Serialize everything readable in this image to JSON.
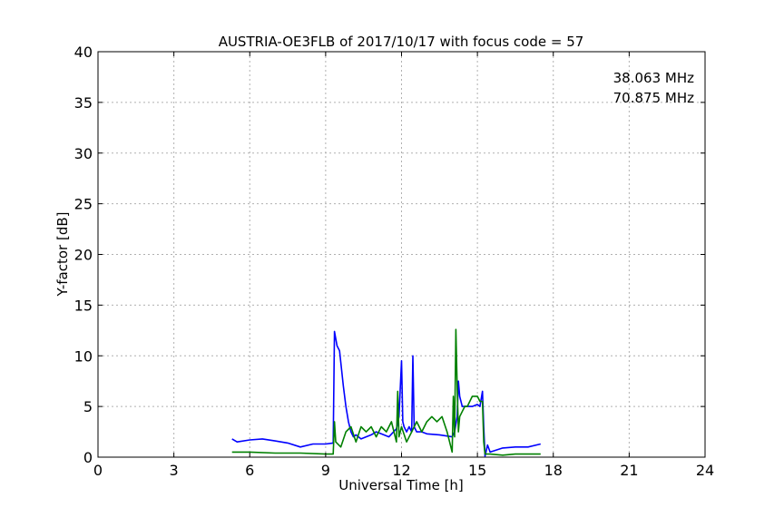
{
  "chart_data": {
    "type": "line",
    "title": "AUSTRIA-OE3FLB of 2017/10/17 with focus code = 57",
    "xlabel": "Universal Time [h]",
    "ylabel": "Y-factor [dB]",
    "xlim": [
      0,
      24
    ],
    "ylim": [
      0,
      40
    ],
    "xticks": [
      0,
      3,
      6,
      9,
      12,
      15,
      18,
      21,
      24
    ],
    "yticks": [
      0,
      5,
      10,
      15,
      20,
      25,
      30,
      35,
      40
    ],
    "grid": true,
    "legend_position": "top-right",
    "series": [
      {
        "name": "38.063 MHz",
        "color": "#0000ff",
        "x": [
          5.3,
          5.5,
          6.0,
          6.5,
          7.0,
          7.5,
          8.0,
          8.5,
          9.0,
          9.3,
          9.35,
          9.45,
          9.55,
          9.7,
          9.8,
          9.9,
          10.0,
          10.1,
          10.2,
          10.4,
          10.6,
          10.8,
          11.0,
          11.2,
          11.5,
          11.8,
          11.9,
          12.0,
          12.05,
          12.1,
          12.2,
          12.3,
          12.4,
          12.45,
          12.5,
          12.6,
          12.8,
          13.0,
          13.5,
          14.0,
          14.1,
          14.2,
          14.25,
          14.3,
          14.4,
          14.6,
          14.8,
          15.0,
          15.1,
          15.2,
          15.25,
          15.3,
          15.4,
          15.5,
          16.0,
          16.5,
          17.0,
          17.5
        ],
        "y": [
          1.8,
          1.5,
          1.7,
          1.8,
          1.6,
          1.4,
          1.0,
          1.3,
          1.3,
          1.4,
          12.4,
          11.0,
          10.5,
          7.0,
          5.0,
          3.5,
          2.5,
          2.0,
          2.2,
          1.8,
          2.0,
          2.2,
          2.5,
          2.3,
          2.0,
          2.8,
          4.0,
          9.5,
          3.5,
          3.0,
          2.5,
          3.0,
          2.5,
          10.0,
          3.0,
          2.5,
          2.5,
          2.3,
          2.2,
          2.0,
          2.5,
          4.0,
          7.5,
          6.0,
          5.0,
          5.0,
          5.0,
          5.2,
          5.0,
          6.5,
          3.0,
          0.1,
          1.2,
          0.5,
          0.9,
          1.0,
          1.0,
          1.3
        ]
      },
      {
        "name": "70.875 MHz",
        "color": "#008000",
        "x": [
          5.3,
          6.0,
          7.0,
          8.0,
          9.0,
          9.3,
          9.35,
          9.4,
          9.6,
          9.8,
          10.0,
          10.2,
          10.4,
          10.6,
          10.8,
          11.0,
          11.2,
          11.4,
          11.6,
          11.8,
          11.85,
          11.9,
          12.0,
          12.2,
          12.4,
          12.6,
          12.8,
          13.0,
          13.2,
          13.4,
          13.6,
          13.8,
          14.0,
          14.05,
          14.1,
          14.15,
          14.2,
          14.25,
          14.3,
          14.4,
          14.5,
          14.6,
          14.8,
          15.0,
          15.1,
          15.2,
          15.25,
          15.3,
          15.4,
          15.5,
          16.0,
          16.5,
          17.0,
          17.5
        ],
        "y": [
          0.5,
          0.5,
          0.4,
          0.4,
          0.3,
          0.3,
          3.5,
          1.5,
          1.0,
          2.5,
          3.0,
          1.5,
          3.0,
          2.5,
          3.0,
          2.0,
          3.0,
          2.5,
          3.5,
          1.5,
          6.5,
          2.0,
          3.0,
          1.5,
          2.5,
          3.5,
          2.5,
          3.5,
          4.0,
          3.5,
          4.0,
          2.5,
          0.5,
          6.0,
          2.0,
          12.6,
          7.0,
          2.5,
          4.0,
          4.5,
          5.0,
          5.0,
          6.0,
          6.0,
          5.5,
          5.5,
          1.5,
          0.3,
          0.3,
          0.3,
          0.2,
          0.3,
          0.3,
          0.3
        ]
      }
    ]
  }
}
